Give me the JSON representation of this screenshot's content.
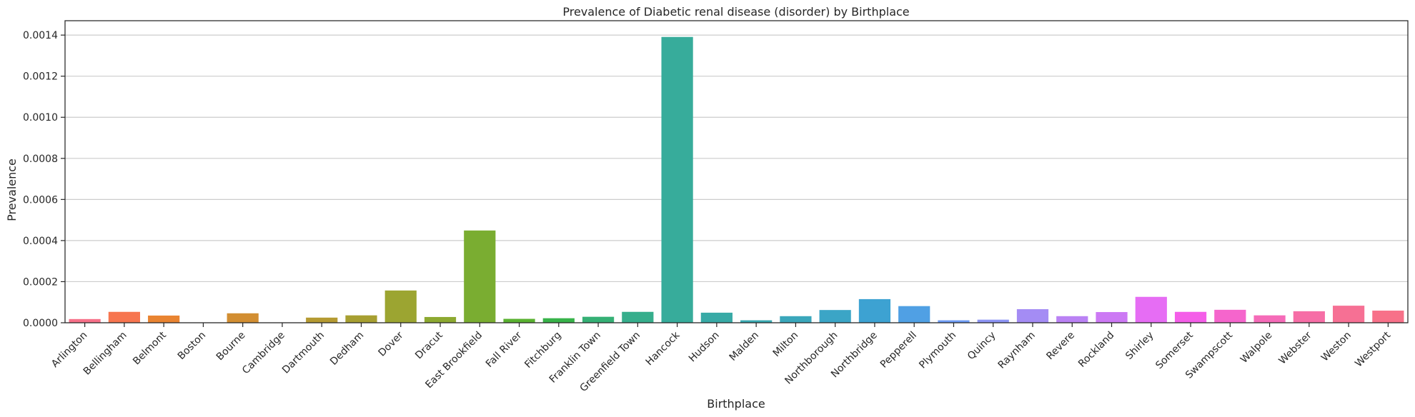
{
  "chart_data": {
    "type": "bar",
    "title": "Prevalence of Diabetic renal disease (disorder) by Birthplace",
    "xlabel": "Birthplace",
    "ylabel": "Prevalence",
    "ylim": [
      0,
      0.00147
    ],
    "yticks": [
      "0.0000",
      "0.0002",
      "0.0004",
      "0.0006",
      "0.0008",
      "0.0010",
      "0.0012",
      "0.0014"
    ],
    "grid": "horizontal",
    "categories": [
      "Arlington",
      "Bellingham",
      "Belmont",
      "Boston",
      "Bourne",
      "Cambridge",
      "Dartmouth",
      "Dedham",
      "Dover",
      "Dracut",
      "East Brookfield",
      "Fall River",
      "Fitchburg",
      "Franklin Town",
      "Greenfield Town",
      "Hancock",
      "Hudson",
      "Malden",
      "Milton",
      "Northborough",
      "Northbridge",
      "Pepperell",
      "Plymouth",
      "Quincy",
      "Raynham",
      "Revere",
      "Rockland",
      "Shirley",
      "Somerset",
      "Swampscott",
      "Walpole",
      "Webster",
      "Weston",
      "Westport"
    ],
    "values": [
      1.8e-05,
      5.3e-05,
      3.5e-05,
      0.0,
      4.6e-05,
      0.0,
      2.5e-05,
      3.6e-05,
      0.000157,
      2.8e-05,
      0.000449,
      1.9e-05,
      2.2e-05,
      2.9e-05,
      5.3e-05,
      0.001391,
      4.9e-05,
      1.2e-05,
      3.2e-05,
      6.2e-05,
      0.000115,
      8.1e-05,
      1.2e-05,
      1.5e-05,
      6.6e-05,
      3.2e-05,
      5.2e-05,
      0.000126,
      5.3e-05,
      6.3e-05,
      3.6e-05,
      5.6e-05,
      8.3e-05,
      5.9e-05
    ],
    "colors": [
      "#f77189",
      "#f7754f",
      "#e98431",
      "#dc8932",
      "#d28e32",
      "#c39532",
      "#b59a32",
      "#a79f31",
      "#9ca531",
      "#8da931",
      "#7aad31",
      "#5ab231",
      "#38b34a",
      "#35b075",
      "#36ae8c",
      "#37ac9b",
      "#38aaa6",
      "#39a9b1",
      "#3aa7bb",
      "#3ba5c6",
      "#3da2d2",
      "#50a0e4",
      "#6e9bf4",
      "#8d94f4",
      "#a48cf4",
      "#ba82f4",
      "#cc79f4",
      "#e66df4",
      "#f45ee8",
      "#f565cc",
      "#f56bb8",
      "#f66ea6",
      "#f67094",
      "#f77189"
    ]
  }
}
